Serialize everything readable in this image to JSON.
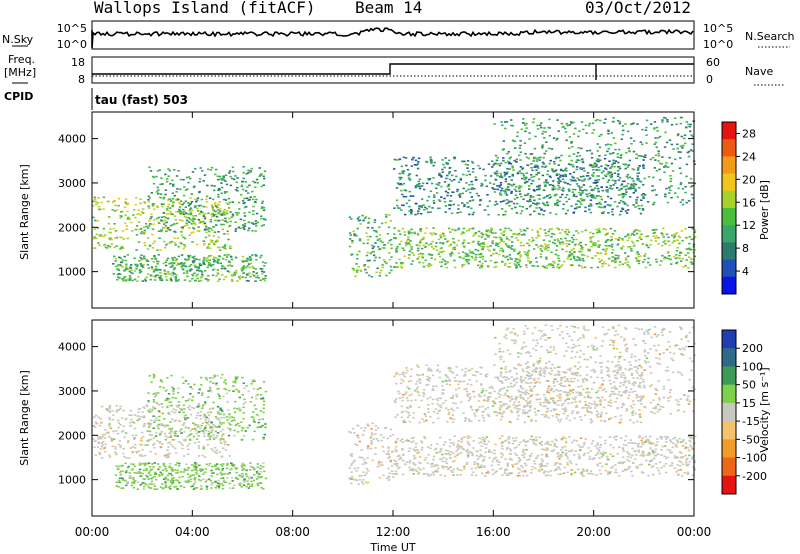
{
  "header": {
    "station": "Wallops Island (fitACF)",
    "beam": "Beam 14",
    "date": "03/Oct/2012"
  },
  "strips": {
    "nsky_label": "N.Sky",
    "nsky_ticks": [
      "10^5",
      "10^0"
    ],
    "nsearch_label": "N.Search",
    "nsearch_ticks": [
      "10^5",
      "10^0"
    ],
    "freq_label": "Freq.",
    "freq_unit": "[MHz]",
    "freq_ticks": [
      "18",
      "8"
    ],
    "nave_label": "Nave",
    "nave_ticks": [
      "60",
      "0"
    ],
    "cpid_label": "CPID",
    "cpid_value": "tau (fast) 503"
  },
  "chart_data": [
    {
      "type": "heatmap",
      "panel": "power",
      "ylabel": "Slant Range [km]",
      "yticks": [
        1000,
        2000,
        3000,
        4000
      ],
      "ylim": [
        180,
        4600
      ],
      "xlim_hours": [
        0,
        24
      ],
      "colorbar": {
        "label": "Power [dB]",
        "ticks": [
          4,
          8,
          12,
          16,
          20,
          24,
          28
        ],
        "range": [
          0,
          30
        ],
        "colors": [
          "#0a14e6",
          "#1f4fb8",
          "#2d7a6e",
          "#37a86a",
          "#4bbf3c",
          "#a6d22a",
          "#f0c61c",
          "#f39a18",
          "#ec5a14",
          "#e61410"
        ]
      },
      "regions": [
        {
          "t": [
            0.0,
            5.5
          ],
          "r": [
            1500,
            2700
          ],
          "level": 16
        },
        {
          "t": [
            2.2,
            6.9
          ],
          "r": [
            1900,
            3400
          ],
          "level": 10
        },
        {
          "t": [
            0.8,
            6.9
          ],
          "r": [
            800,
            1400
          ],
          "level": 12
        },
        {
          "t": [
            10.2,
            12.0
          ],
          "r": [
            900,
            2300
          ],
          "level": 12
        },
        {
          "t": [
            12.0,
            24.0
          ],
          "r": [
            1100,
            2000
          ],
          "level": 14
        },
        {
          "t": [
            12.0,
            22.0
          ],
          "r": [
            2300,
            3600
          ],
          "level": 8
        },
        {
          "t": [
            16.0,
            24.0
          ],
          "r": [
            2500,
            4500
          ],
          "level": 10
        }
      ]
    },
    {
      "type": "heatmap",
      "panel": "velocity",
      "ylabel": "Slant Range [km]",
      "yticks": [
        1000,
        2000,
        3000,
        4000
      ],
      "ylim": [
        180,
        4600
      ],
      "xlim_hours": [
        0,
        24
      ],
      "colorbar": {
        "label": "Velocity [m s⁻¹]",
        "ticks": [
          200,
          100,
          50,
          15,
          -15,
          -50,
          -100,
          -200
        ],
        "colors": [
          "#1f3fb0",
          "#2f6a88",
          "#3c9c56",
          "#7fd04b",
          "#c8c8c0",
          "#f3c26a",
          "#f29a2a",
          "#ee6618",
          "#e61410"
        ]
      },
      "regions": [
        {
          "t": [
            0.0,
            5.5
          ],
          "r": [
            1500,
            2700
          ],
          "level": 0
        },
        {
          "t": [
            2.2,
            6.9
          ],
          "r": [
            1900,
            3400
          ],
          "level": 30
        },
        {
          "t": [
            0.8,
            6.9
          ],
          "r": [
            800,
            1400
          ],
          "level": 40
        },
        {
          "t": [
            10.2,
            12.0
          ],
          "r": [
            900,
            2300
          ],
          "level": 0
        },
        {
          "t": [
            12.0,
            24.0
          ],
          "r": [
            1100,
            2000
          ],
          "level": 0
        },
        {
          "t": [
            12.0,
            22.0
          ],
          "r": [
            2300,
            3600
          ],
          "level": 0
        },
        {
          "t": [
            16.0,
            24.0
          ],
          "r": [
            2500,
            4500
          ],
          "level": 0
        }
      ]
    }
  ],
  "xaxis": {
    "ticks": [
      "00:00",
      "04:00",
      "08:00",
      "12:00",
      "16:00",
      "20:00",
      "00:00"
    ],
    "label": "Time UT"
  }
}
